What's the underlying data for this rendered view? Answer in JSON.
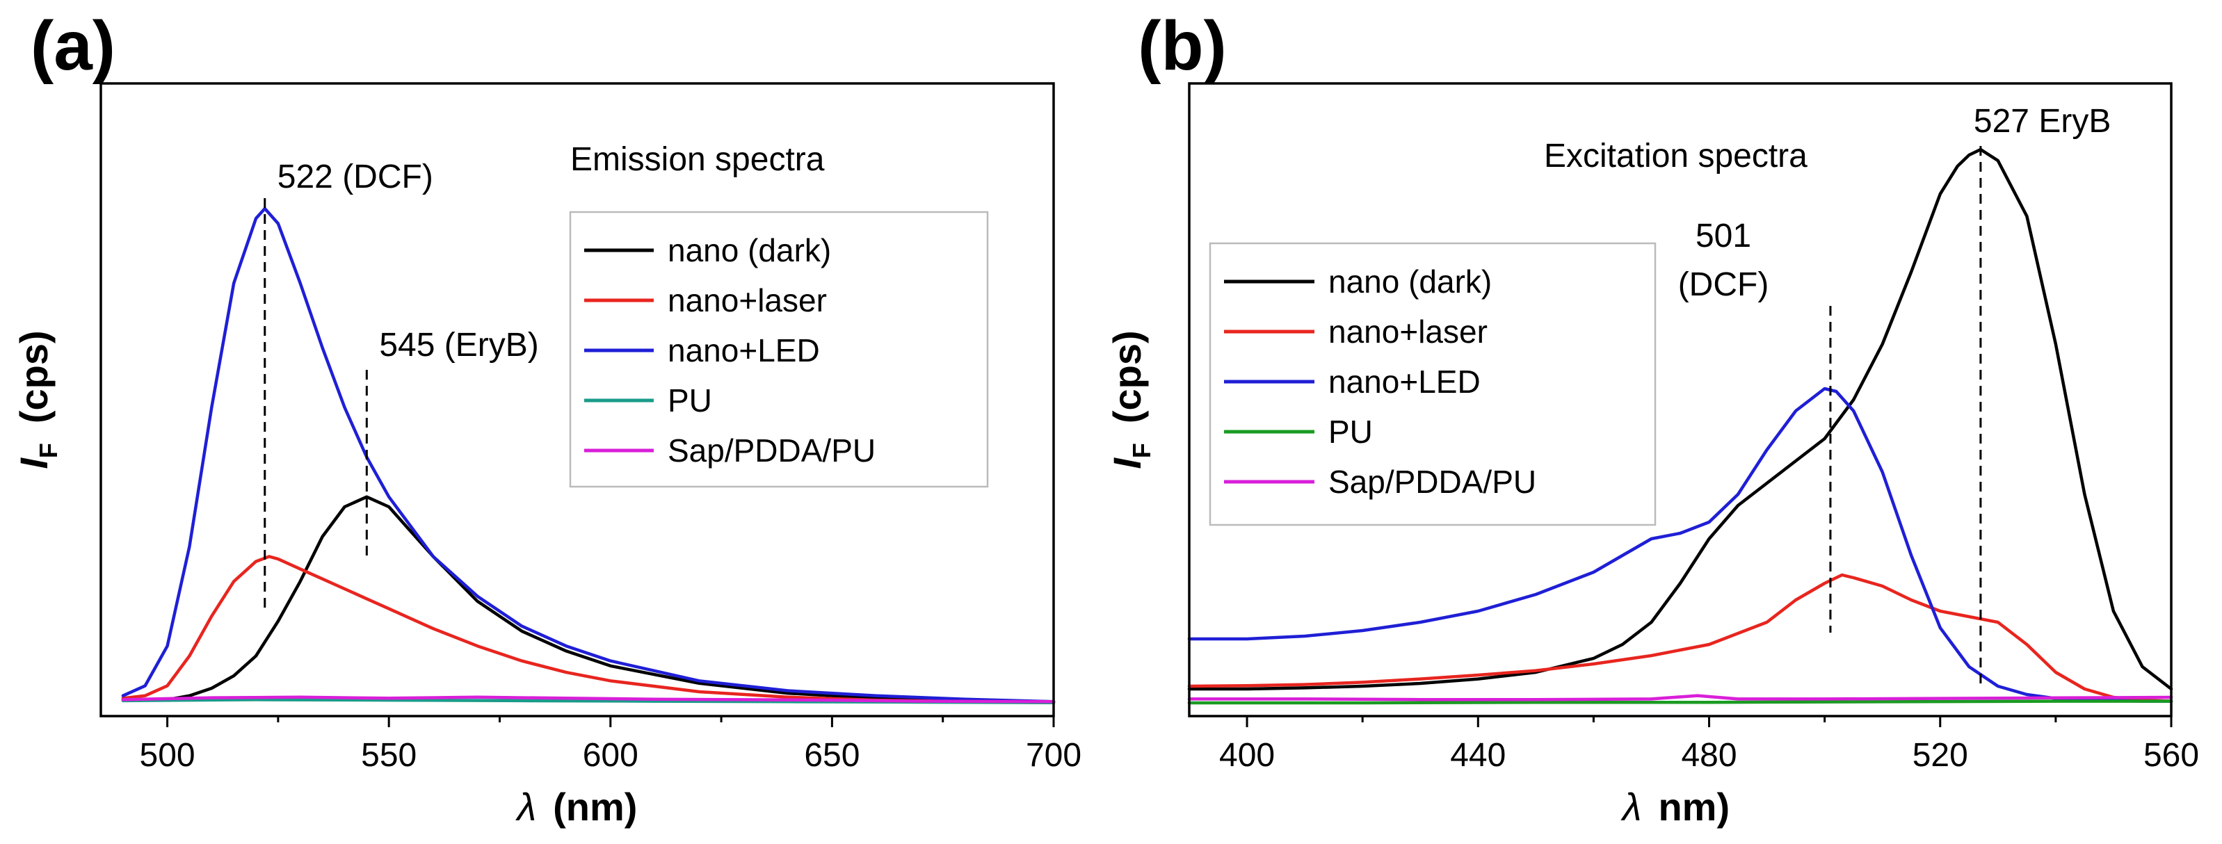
{
  "chart_data": [
    {
      "type": "line",
      "panel_label": "(a)",
      "title": "Emission spectra",
      "xlabel": "λ  (nm)",
      "ylabel": "IF  (cps)",
      "xlim": [
        485,
        700
      ],
      "ylim": [
        0,
        1.0
      ],
      "xticks": [
        500,
        550,
        600,
        650,
        700
      ],
      "yticks_shown": false,
      "legend_position": "top-right",
      "series": [
        {
          "name": "nano (dark)",
          "color": "#000000",
          "x": [
            490,
            500,
            505,
            510,
            515,
            520,
            525,
            530,
            535,
            540,
            545,
            550,
            555,
            560,
            570,
            580,
            590,
            600,
            620,
            640,
            660,
            680,
            700
          ],
          "y": [
            0.012,
            0.012,
            0.02,
            0.035,
            0.06,
            0.1,
            0.17,
            0.25,
            0.34,
            0.4,
            0.42,
            0.4,
            0.35,
            0.3,
            0.21,
            0.15,
            0.11,
            0.08,
            0.045,
            0.025,
            0.015,
            0.01,
            0.008
          ]
        },
        {
          "name": "nano+laser",
          "color": "#e8251f",
          "x": [
            490,
            495,
            500,
            505,
            510,
            515,
            520,
            523,
            525,
            530,
            535,
            540,
            545,
            550,
            560,
            570,
            580,
            590,
            600,
            620,
            640,
            660,
            680,
            700
          ],
          "y": [
            0.015,
            0.02,
            0.04,
            0.1,
            0.18,
            0.25,
            0.29,
            0.3,
            0.295,
            0.275,
            0.255,
            0.235,
            0.215,
            0.195,
            0.155,
            0.12,
            0.09,
            0.067,
            0.05,
            0.028,
            0.017,
            0.011,
            0.008,
            0.006
          ]
        },
        {
          "name": "nano+LED",
          "color": "#1f1fd6",
          "x": [
            490,
            495,
            500,
            505,
            510,
            515,
            520,
            522,
            525,
            530,
            535,
            540,
            545,
            550,
            560,
            570,
            580,
            590,
            600,
            620,
            640,
            660,
            680,
            700
          ],
          "y": [
            0.02,
            0.04,
            0.12,
            0.32,
            0.6,
            0.85,
            0.98,
            1.0,
            0.97,
            0.85,
            0.72,
            0.6,
            0.5,
            0.42,
            0.3,
            0.22,
            0.16,
            0.12,
            0.09,
            0.05,
            0.03,
            0.02,
            0.013,
            0.008
          ]
        },
        {
          "name": "PU",
          "color": "#1a9b8a",
          "x": [
            490,
            520,
            550,
            580,
            610,
            640,
            670,
            700
          ],
          "y": [
            0.01,
            0.012,
            0.011,
            0.01,
            0.009,
            0.008,
            0.007,
            0.006
          ]
        },
        {
          "name": "Sap/PDDA/PU",
          "color": "#d91fd9",
          "x": [
            490,
            510,
            530,
            550,
            570,
            590,
            610,
            630,
            650,
            670,
            700
          ],
          "y": [
            0.012,
            0.016,
            0.017,
            0.015,
            0.017,
            0.015,
            0.013,
            0.012,
            0.011,
            0.009,
            0.008
          ]
        }
      ],
      "annotations": [
        {
          "text": "522 (DCF)",
          "x": 522
        },
        {
          "text": "545 (EryB)",
          "x": 545
        }
      ]
    },
    {
      "type": "line",
      "panel_label": "(b)",
      "title": "Excitation spectra",
      "xlabel": "λ  nm)",
      "ylabel": "IF  (cps)",
      "xlim": [
        390,
        560
      ],
      "ylim": [
        0,
        1.0
      ],
      "xticks": [
        400,
        440,
        480,
        520,
        560
      ],
      "yticks_shown": false,
      "legend_position": "middle-left",
      "series": [
        {
          "name": "nano (dark)",
          "color": "#000000",
          "x": [
            390,
            400,
            410,
            420,
            430,
            440,
            450,
            460,
            465,
            470,
            475,
            480,
            485,
            490,
            495,
            500,
            505,
            510,
            515,
            520,
            523,
            525,
            527,
            530,
            535,
            540,
            545,
            550,
            555,
            560
          ],
          "y": [
            0.03,
            0.03,
            0.032,
            0.035,
            0.04,
            0.048,
            0.06,
            0.085,
            0.11,
            0.15,
            0.22,
            0.3,
            0.36,
            0.4,
            0.44,
            0.48,
            0.55,
            0.65,
            0.78,
            0.92,
            0.97,
            0.99,
            1.0,
            0.98,
            0.88,
            0.65,
            0.38,
            0.17,
            0.07,
            0.03
          ]
        },
        {
          "name": "nano+laser",
          "color": "#e8251f",
          "x": [
            390,
            400,
            410,
            420,
            430,
            440,
            450,
            460,
            470,
            480,
            490,
            495,
            500,
            503,
            505,
            510,
            515,
            520,
            525,
            530,
            535,
            540,
            545,
            550,
            555,
            560
          ],
          "y": [
            0.035,
            0.036,
            0.038,
            0.042,
            0.048,
            0.055,
            0.063,
            0.075,
            0.09,
            0.11,
            0.15,
            0.19,
            0.22,
            0.235,
            0.23,
            0.215,
            0.19,
            0.17,
            0.16,
            0.15,
            0.11,
            0.06,
            0.03,
            0.015,
            0.01,
            0.008
          ]
        },
        {
          "name": "nano+LED",
          "color": "#1f1fd6",
          "x": [
            390,
            400,
            410,
            420,
            430,
            440,
            450,
            460,
            465,
            470,
            475,
            480,
            485,
            490,
            495,
            500,
            502,
            505,
            510,
            515,
            520,
            525,
            530,
            535,
            540,
            545,
            550,
            555,
            560
          ],
          "y": [
            0.12,
            0.12,
            0.125,
            0.135,
            0.15,
            0.17,
            0.2,
            0.24,
            0.27,
            0.3,
            0.31,
            0.33,
            0.38,
            0.46,
            0.53,
            0.57,
            0.565,
            0.53,
            0.42,
            0.27,
            0.14,
            0.07,
            0.035,
            0.02,
            0.013,
            0.01,
            0.009,
            0.008,
            0.008
          ]
        },
        {
          "name": "PU",
          "color": "#1a9b22",
          "x": [
            390,
            420,
            450,
            480,
            510,
            540,
            560
          ],
          "y": [
            0.005,
            0.005,
            0.006,
            0.006,
            0.007,
            0.008,
            0.008
          ]
        },
        {
          "name": "Sap/PDDA/PU",
          "color": "#d91fd9",
          "x": [
            390,
            410,
            430,
            450,
            470,
            478,
            485,
            500,
            520,
            540,
            560
          ],
          "y": [
            0.012,
            0.012,
            0.011,
            0.011,
            0.012,
            0.018,
            0.012,
            0.012,
            0.013,
            0.014,
            0.015
          ]
        }
      ],
      "annotations": [
        {
          "text": "501",
          "text2": "(DCF)",
          "x": 501
        },
        {
          "text": "527 EryB",
          "x": 527
        }
      ]
    }
  ]
}
